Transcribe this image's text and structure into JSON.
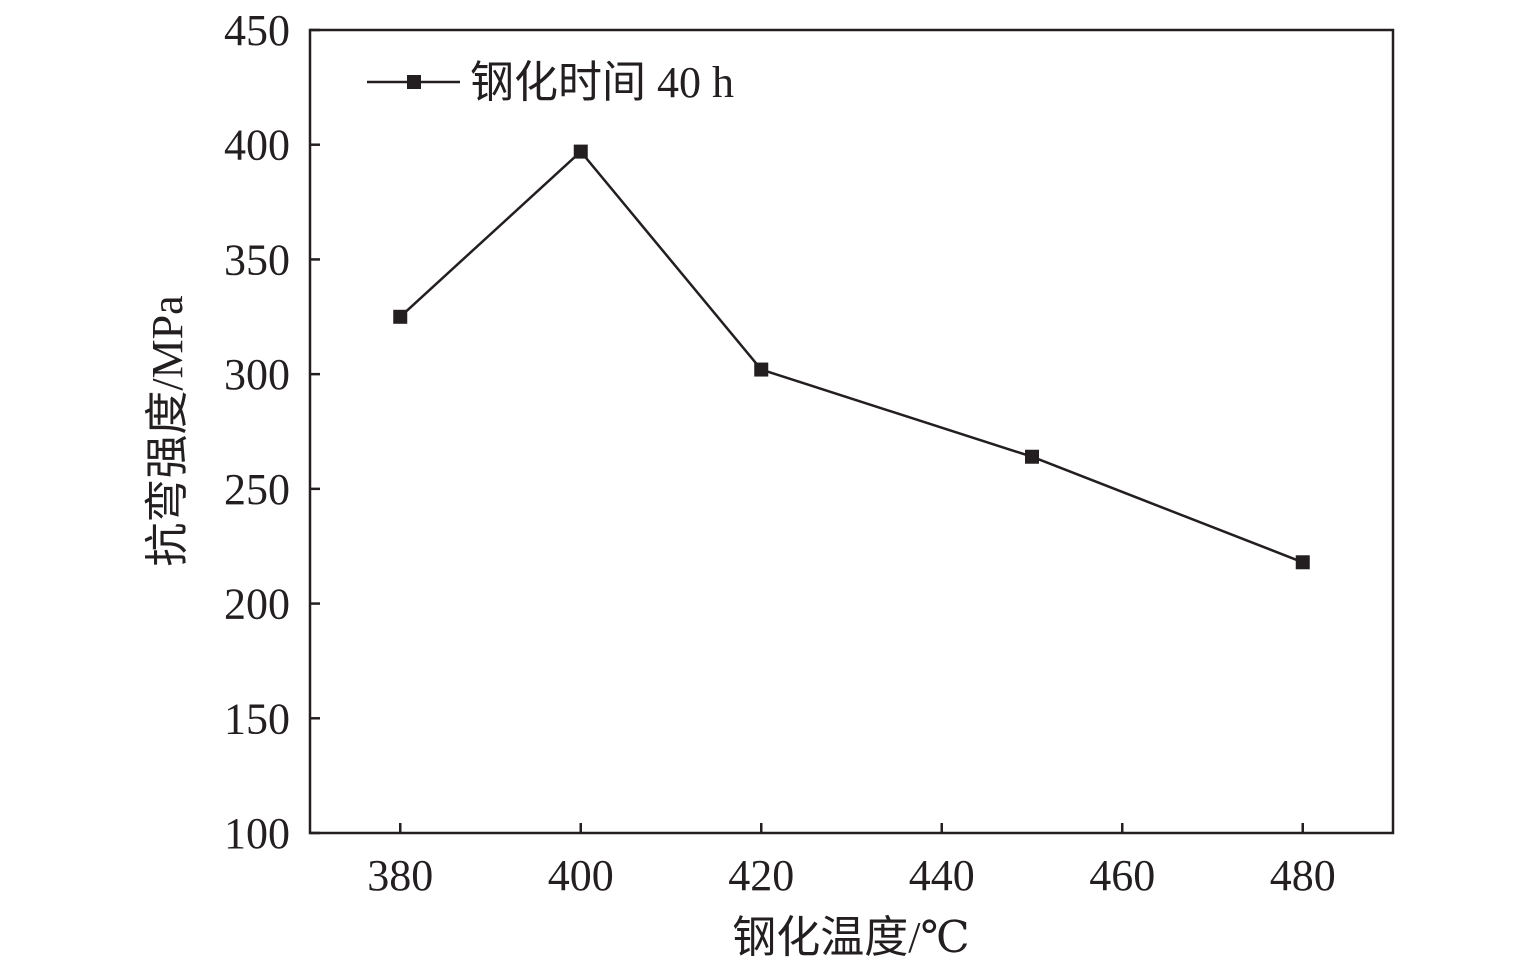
{
  "chart_data": {
    "type": "line",
    "title": "",
    "xlabel": "钢化温度/℃",
    "ylabel": "抗弯强度/MPa",
    "xlim": [
      370,
      490
    ],
    "ylim": [
      100,
      450
    ],
    "xticks": [
      380,
      400,
      420,
      440,
      460,
      480
    ],
    "yticks": [
      100,
      150,
      200,
      250,
      300,
      350,
      400,
      450
    ],
    "grid": false,
    "legend_position": "top-left",
    "series": [
      {
        "name": "钢化时间 40 h",
        "marker": "square",
        "color": "#231f20",
        "x": [
          380,
          400,
          420,
          450,
          480
        ],
        "y": [
          325,
          397,
          302,
          264,
          218
        ]
      }
    ]
  }
}
